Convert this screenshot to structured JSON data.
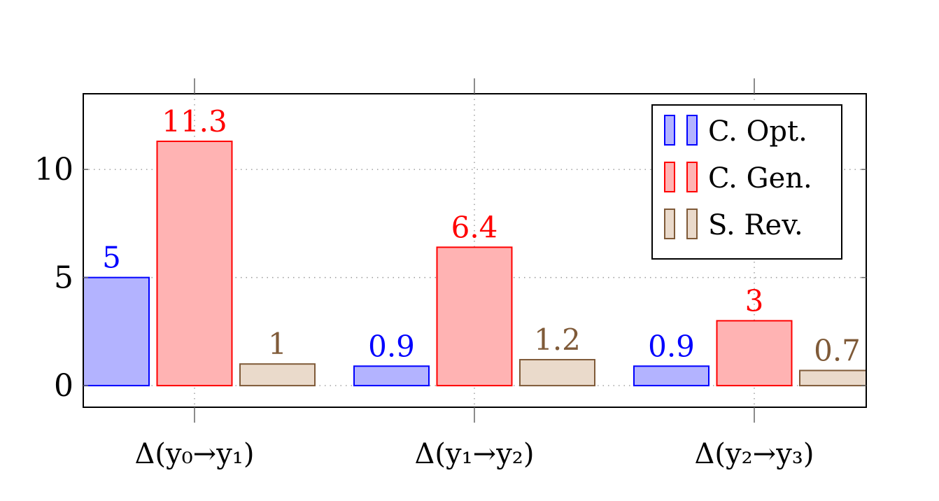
{
  "chart_data": {
    "type": "bar",
    "categories": [
      "Δ(y₀→y₁)",
      "Δ(y₁→y₂)",
      "Δ(y₂→y₃)"
    ],
    "series": [
      {
        "name": "C. Opt.",
        "values": [
          5,
          0.9,
          0.9
        ],
        "labels": [
          "5",
          "0.9",
          "0.9"
        ],
        "stroke": "#0000ff",
        "fill": "#b3b3ff"
      },
      {
        "name": "C. Gen.",
        "values": [
          11.3,
          6.4,
          3
        ],
        "labels": [
          "11.3",
          "6.4",
          "3"
        ],
        "stroke": "#ff0000",
        "fill": "#ffb3b3"
      },
      {
        "name": "S. Rev.",
        "values": [
          1,
          1.2,
          0.7
        ],
        "labels": [
          "1",
          "1.2",
          "0.7"
        ],
        "stroke": "#7f5a38",
        "fill": "#eadacb"
      }
    ],
    "yticks": [
      0,
      5,
      10
    ],
    "ylim": [
      -1,
      13.5
    ],
    "grid": true,
    "legend_position": "top-right"
  }
}
